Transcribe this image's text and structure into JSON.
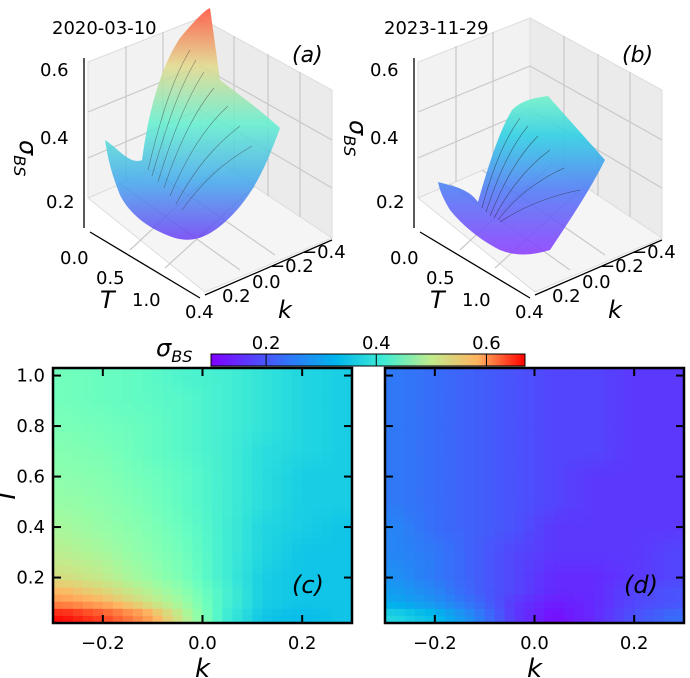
{
  "chart_data": [
    {
      "id": "a",
      "type": "surface3d",
      "date": "2020-03-10",
      "panel_label": "(a)",
      "zlabel": "σ",
      "zlabel_sub": "BS",
      "xlabel": "T",
      "ylabel": "k",
      "zticks": [
        "0.2",
        "0.4",
        "0.6"
      ],
      "xticks": [
        "0.0",
        "0.5",
        "1.0"
      ],
      "yticks": [
        "0.4",
        "0.2",
        "0.0",
        "−0.2",
        "−0.4"
      ],
      "zlim": [
        0.1,
        0.65
      ],
      "description_values": {
        "min_sigma": 0.18,
        "max_sigma": 0.65
      }
    },
    {
      "id": "b",
      "type": "surface3d",
      "date": "2023-11-29",
      "panel_label": "(b)",
      "zlabel": "σ",
      "zlabel_sub": "BS",
      "xlabel": "T",
      "ylabel": "k",
      "zticks": [
        "0.2",
        "0.4",
        "0.6"
      ],
      "xticks": [
        "0.0",
        "0.5",
        "1.0"
      ],
      "yticks": [
        "0.4",
        "0.2",
        "0.0",
        "−0.2",
        "−0.4"
      ],
      "zlim": [
        0.1,
        0.65
      ],
      "description_values": {
        "min_sigma": 0.1,
        "max_sigma": 0.45
      }
    },
    {
      "id": "c",
      "type": "heatmap",
      "panel_label": "(c)",
      "xlabel": "k",
      "ylabel": "T",
      "xticks": [
        "−0.2",
        "0.0",
        "0.2"
      ],
      "xtick_values": [
        -0.2,
        0.0,
        0.2
      ],
      "yticks": [
        "0.2",
        "0.4",
        "0.6",
        "0.8",
        "1.0"
      ],
      "ytick_values": [
        0.2,
        0.4,
        0.6,
        0.8,
        1.0
      ],
      "xlim": [
        -0.3,
        0.3
      ],
      "ylim": [
        0.02,
        1.03
      ],
      "rows_T": [
        0.05,
        0.1,
        0.15,
        0.2,
        0.3,
        0.4,
        0.5,
        0.6,
        0.7,
        0.8,
        0.9,
        1.0
      ],
      "cols_k": [
        -0.28,
        -0.2,
        -0.12,
        -0.04,
        0.04,
        0.12,
        0.2,
        0.28
      ],
      "values": [
        [
          0.66,
          0.62,
          0.56,
          0.46,
          0.32,
          0.26,
          0.25,
          0.26
        ],
        [
          0.56,
          0.53,
          0.48,
          0.42,
          0.33,
          0.27,
          0.26,
          0.26
        ],
        [
          0.52,
          0.49,
          0.45,
          0.4,
          0.33,
          0.27,
          0.26,
          0.26
        ],
        [
          0.48,
          0.46,
          0.42,
          0.38,
          0.32,
          0.27,
          0.26,
          0.26
        ],
        [
          0.45,
          0.43,
          0.4,
          0.37,
          0.32,
          0.28,
          0.26,
          0.26
        ],
        [
          0.43,
          0.41,
          0.39,
          0.36,
          0.32,
          0.28,
          0.27,
          0.26
        ],
        [
          0.41,
          0.4,
          0.38,
          0.35,
          0.32,
          0.29,
          0.27,
          0.27
        ],
        [
          0.4,
          0.39,
          0.37,
          0.35,
          0.32,
          0.29,
          0.27,
          0.27
        ],
        [
          0.39,
          0.38,
          0.36,
          0.34,
          0.32,
          0.29,
          0.28,
          0.27
        ],
        [
          0.38,
          0.37,
          0.36,
          0.34,
          0.32,
          0.3,
          0.28,
          0.27
        ],
        [
          0.37,
          0.36,
          0.35,
          0.34,
          0.32,
          0.3,
          0.28,
          0.27
        ],
        [
          0.37,
          0.36,
          0.35,
          0.33,
          0.32,
          0.3,
          0.28,
          0.27
        ]
      ]
    },
    {
      "id": "d",
      "type": "heatmap",
      "panel_label": "(d)",
      "xlabel": "k",
      "ylabel": "",
      "xticks": [
        "−0.2",
        "0.0",
        "0.2"
      ],
      "xtick_values": [
        -0.2,
        0.0,
        0.2
      ],
      "yticks": [],
      "ytick_values": [
        0.2,
        0.4,
        0.6,
        0.8,
        1.0
      ],
      "xlim": [
        -0.3,
        0.3
      ],
      "ylim": [
        0.02,
        1.03
      ],
      "rows_T": [
        0.05,
        0.1,
        0.15,
        0.2,
        0.3,
        0.4,
        0.5,
        0.6,
        0.7,
        0.8,
        0.9,
        1.0
      ],
      "cols_k": [
        -0.28,
        -0.2,
        -0.12,
        -0.04,
        0.04,
        0.12,
        0.2,
        0.28
      ],
      "values": [
        [
          0.28,
          0.25,
          0.2,
          0.14,
          0.11,
          0.13,
          0.16,
          0.18
        ],
        [
          0.23,
          0.21,
          0.18,
          0.14,
          0.12,
          0.13,
          0.15,
          0.16
        ],
        [
          0.22,
          0.2,
          0.17,
          0.15,
          0.13,
          0.13,
          0.15,
          0.16
        ],
        [
          0.21,
          0.19,
          0.17,
          0.15,
          0.13,
          0.13,
          0.14,
          0.15
        ],
        [
          0.2,
          0.19,
          0.17,
          0.15,
          0.14,
          0.14,
          0.14,
          0.15
        ],
        [
          0.2,
          0.18,
          0.17,
          0.16,
          0.14,
          0.14,
          0.14,
          0.14
        ],
        [
          0.19,
          0.18,
          0.17,
          0.16,
          0.15,
          0.14,
          0.14,
          0.14
        ],
        [
          0.19,
          0.18,
          0.17,
          0.16,
          0.15,
          0.14,
          0.14,
          0.14
        ],
        [
          0.19,
          0.18,
          0.17,
          0.16,
          0.15,
          0.15,
          0.14,
          0.14
        ],
        [
          0.19,
          0.18,
          0.17,
          0.16,
          0.15,
          0.15,
          0.14,
          0.14
        ],
        [
          0.19,
          0.18,
          0.17,
          0.16,
          0.15,
          0.15,
          0.14,
          0.14
        ],
        [
          0.19,
          0.18,
          0.17,
          0.16,
          0.15,
          0.15,
          0.14,
          0.14
        ]
      ]
    }
  ],
  "colorbar": {
    "label": "σ",
    "label_sub": "BS",
    "ticks": [
      "0.2",
      "0.4",
      "0.6"
    ],
    "tick_values": [
      0.2,
      0.4,
      0.6
    ],
    "vmin": 0.1,
    "vmax": 0.67,
    "colormap": "rainbow"
  }
}
